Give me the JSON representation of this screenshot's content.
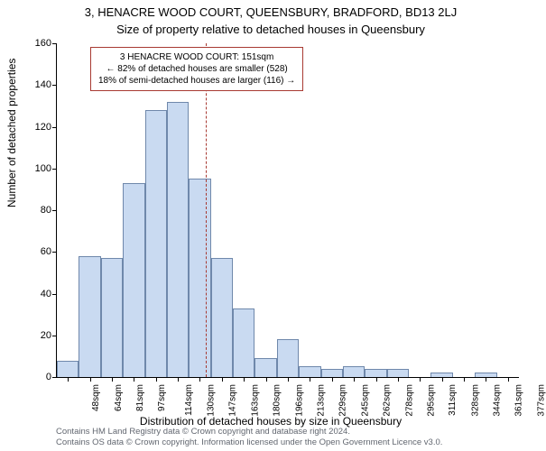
{
  "chart": {
    "type": "histogram",
    "title_line1": "3, HENACRE WOOD COURT, QUEENSBURY, BRADFORD, BD13 2LJ",
    "title_line2": "Size of property relative to detached houses in Queensbury",
    "y_axis_label": "Number of detached properties",
    "x_axis_label": "Distribution of detached houses by size in Queensbury",
    "ylim": [
      0,
      160
    ],
    "ytick_step": 20,
    "background_color": "#ffffff",
    "bar_fill": "#c9daf1",
    "bar_stroke": "#6f88ab",
    "bar_stroke_width": 1,
    "reference_line_color": "#a83a32",
    "reference_line_value": 151,
    "annotation_border_color": "#a83a32",
    "annotation": {
      "line1": "3 HENACRE WOOD COURT: 151sqm",
      "line2": "← 82% of detached houses are smaller (528)",
      "line3": "18% of semi-detached houses are larger (116) →"
    },
    "footer_line1": "Contains HM Land Registry data © Crown copyright and database right 2024.",
    "footer_line2": "Contains OS data © Crown copyright. Information licensed under the Open Government Licence v3.0.",
    "x_categories": [
      "48sqm",
      "64sqm",
      "81sqm",
      "97sqm",
      "114sqm",
      "130sqm",
      "147sqm",
      "163sqm",
      "180sqm",
      "196sqm",
      "213sqm",
      "229sqm",
      "245sqm",
      "262sqm",
      "278sqm",
      "295sqm",
      "311sqm",
      "328sqm",
      "344sqm",
      "361sqm",
      "377sqm"
    ],
    "values": [
      8,
      58,
      57,
      93,
      128,
      132,
      95,
      57,
      33,
      9,
      18,
      5,
      4,
      5,
      4,
      4,
      0,
      2,
      0,
      2,
      0
    ]
  }
}
